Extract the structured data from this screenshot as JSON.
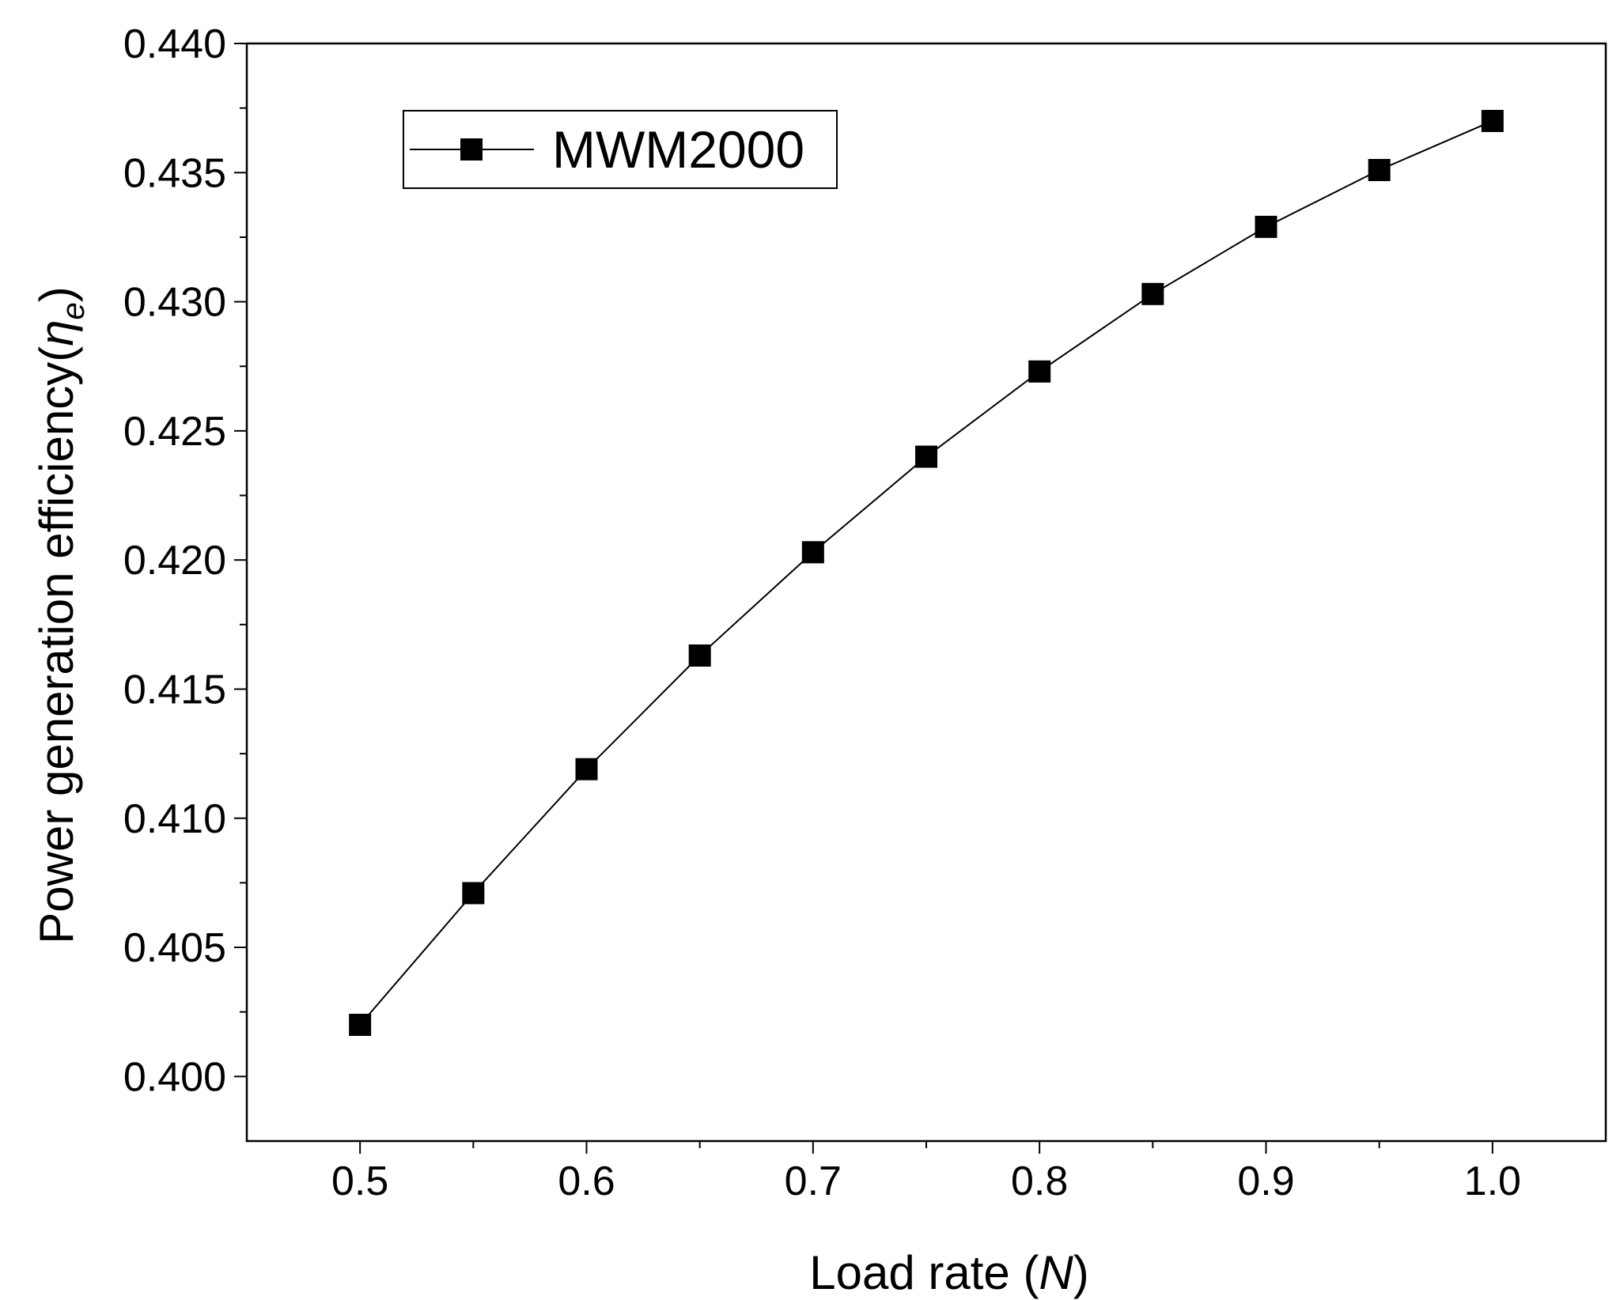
{
  "chart_data": {
    "type": "line",
    "title": "",
    "xlabel": "Load rate (",
    "xlabel_var": "N",
    "xlabel_end": ")",
    "ylabel": "Power generation efficiency(",
    "ylabel_var": "η",
    "ylabel_sub": "e",
    "ylabel_end": ")",
    "xlim": [
      0.45,
      1.05
    ],
    "ylim": [
      0.3975,
      0.44
    ],
    "x_ticks": [
      0.5,
      0.6,
      0.7,
      0.8,
      0.9,
      1.0
    ],
    "x_tick_labels": [
      "0.5",
      "0.6",
      "0.7",
      "0.8",
      "0.9",
      "1.0"
    ],
    "y_ticks": [
      0.4,
      0.405,
      0.41,
      0.415,
      0.42,
      0.425,
      0.43,
      0.435,
      0.44
    ],
    "y_tick_labels": [
      "0.400",
      "0.405",
      "0.410",
      "0.415",
      "0.420",
      "0.425",
      "0.430",
      "0.435",
      "0.440"
    ],
    "grid": false,
    "legend_position": "top-left",
    "series": [
      {
        "name": "MWM2000",
        "marker": "square",
        "color": "#000000",
        "x": [
          0.5,
          0.55,
          0.6,
          0.65,
          0.7,
          0.75,
          0.8,
          0.85,
          0.9,
          0.95,
          1.0
        ],
        "y": [
          0.402,
          0.4071,
          0.4119,
          0.4163,
          0.4203,
          0.424,
          0.4273,
          0.4303,
          0.4329,
          0.4351,
          0.437
        ]
      }
    ]
  }
}
